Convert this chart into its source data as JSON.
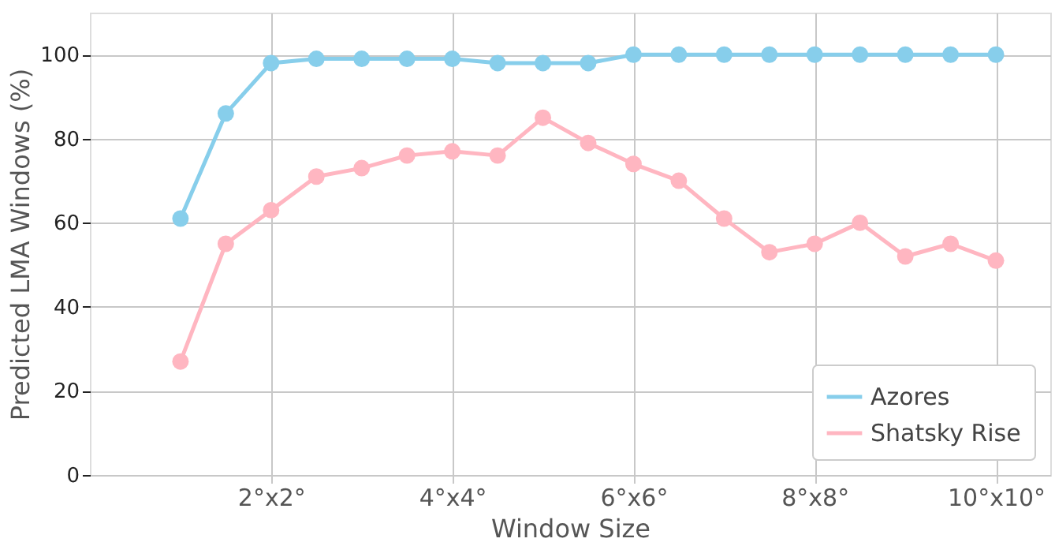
{
  "chart_data": {
    "type": "line",
    "xlabel": "Window Size",
    "ylabel": "Predicted LMA Windows (%)",
    "categories": [
      null,
      null,
      "2°x2°",
      null,
      null,
      null,
      "4°x4°",
      null,
      null,
      null,
      "6°x6°",
      null,
      null,
      null,
      "8°x8°",
      null,
      null,
      null,
      "10°x10°"
    ],
    "series": [
      {
        "name": "Azores",
        "color": "#87ceeb",
        "values": [
          61,
          86,
          98,
          99,
          99,
          99,
          99,
          98,
          98,
          98,
          100,
          100,
          100,
          100,
          100,
          100,
          100,
          100,
          100
        ]
      },
      {
        "name": "Shatsky Rise",
        "color": "#ffb6c1",
        "values": [
          27,
          55,
          63,
          71,
          73,
          76,
          77,
          76,
          85,
          79,
          74,
          70,
          61,
          53,
          55,
          60,
          52,
          55,
          51
        ]
      }
    ],
    "ylim": [
      0,
      110
    ],
    "yticks": [
      0,
      20,
      40,
      60,
      80,
      100
    ],
    "grid": true,
    "legend": "bottom right",
    "marker": "circle",
    "line_style": "solid"
  }
}
